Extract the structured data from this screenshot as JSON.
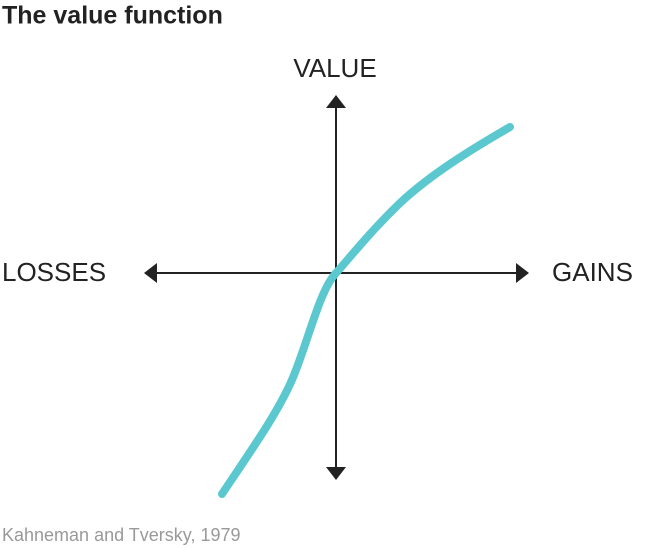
{
  "header": {
    "title": "The value function"
  },
  "diagram": {
    "y_axis_label": "VALUE",
    "left_label": "LOSSES",
    "right_label": "GAINS"
  },
  "footer": {
    "source": "Kahneman and Tversky, 1979"
  }
}
